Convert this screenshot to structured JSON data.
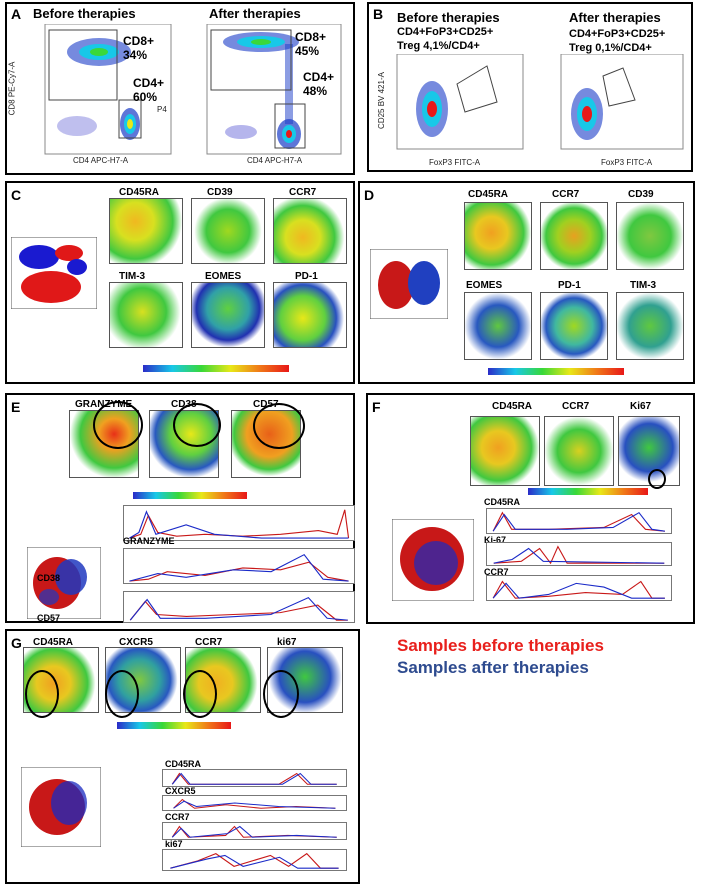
{
  "panels": {
    "A": {
      "label": "A",
      "before_title": "Before therapies",
      "after_title": "After therapies",
      "before_cd8": "CD8+",
      "before_cd8_pct": "34%",
      "before_cd4": "CD4+",
      "before_cd4_pct": "60%",
      "before_gate": "P4",
      "after_cd8": "CD8+",
      "after_cd8_pct": "45%",
      "after_cd4": "CD4+",
      "after_cd4_pct": "48%",
      "ylabel": "CD8 PE-Cy7-A",
      "xlabel": "CD4 APC-H7-A"
    },
    "B": {
      "label": "B",
      "before_title": "Before therapies",
      "after_title": "After therapies",
      "before_line1": "CD4+FoP3+CD25+",
      "before_line2": "Treg 4,1%/CD4+",
      "after_line1": "CD4+FoP3+CD25+",
      "after_line2": "Treg 0,1%/CD4+",
      "ylabel": "CD25 BV 421-A",
      "xlabel": "FoxP3 FITC-A"
    },
    "C": {
      "label": "C",
      "markers": [
        "CD45RA",
        "CD39",
        "CCR7",
        "TIM-3",
        "EOMES",
        "PD-1"
      ]
    },
    "D": {
      "label": "D",
      "markers": [
        "CD45RA",
        "CCR7",
        "CD39",
        "EOMES",
        "PD-1",
        "TIM-3"
      ]
    },
    "E": {
      "label": "E",
      "markers": [
        "GRANZYME",
        "CD38",
        "CD57"
      ],
      "hist_labels": [
        "GRANZYME",
        "CD38",
        "CD57"
      ]
    },
    "F": {
      "label": "F",
      "markers": [
        "CD45RA",
        "CCR7",
        "Ki67"
      ],
      "hist_labels": [
        "CD45RA",
        "Ki-67",
        "CCR7"
      ]
    },
    "G": {
      "label": "G",
      "markers": [
        "CD45RA",
        "CXCR5",
        "CCR7",
        "ki67"
      ],
      "hist_labels": [
        "CD45RA",
        "CXCR5",
        "CCR7",
        "ki67"
      ]
    }
  },
  "legend": {
    "before": "Samples before therapies",
    "after": "Samples after therapies",
    "before_color": "#e8201c",
    "after_color": "#2e4b8f"
  }
}
